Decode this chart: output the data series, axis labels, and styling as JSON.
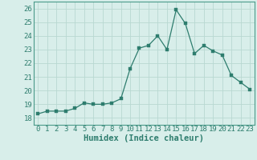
{
  "x": [
    0,
    1,
    2,
    3,
    4,
    5,
    6,
    7,
    8,
    9,
    10,
    11,
    12,
    13,
    14,
    15,
    16,
    17,
    18,
    19,
    20,
    21,
    22,
    23
  ],
  "y": [
    18.3,
    18.5,
    18.5,
    18.5,
    18.7,
    19.1,
    19.0,
    19.0,
    19.1,
    19.4,
    21.6,
    23.1,
    23.3,
    24.0,
    23.0,
    25.9,
    24.9,
    22.7,
    23.3,
    22.9,
    22.6,
    21.1,
    20.6,
    20.1
  ],
  "line_color": "#2e7d6e",
  "marker": "s",
  "marker_size": 2.5,
  "bg_color": "#d8eeea",
  "grid_color": "#b8d8d2",
  "xlabel": "Humidex (Indice chaleur)",
  "xlim": [
    -0.5,
    23.5
  ],
  "ylim": [
    17.5,
    26.5
  ],
  "yticks": [
    18,
    19,
    20,
    21,
    22,
    23,
    24,
    25,
    26
  ],
  "xticks": [
    0,
    1,
    2,
    3,
    4,
    5,
    6,
    7,
    8,
    9,
    10,
    11,
    12,
    13,
    14,
    15,
    16,
    17,
    18,
    19,
    20,
    21,
    22,
    23
  ],
  "xlabel_fontsize": 7.5,
  "tick_fontsize": 6.5,
  "spine_color": "#4a9a8a"
}
